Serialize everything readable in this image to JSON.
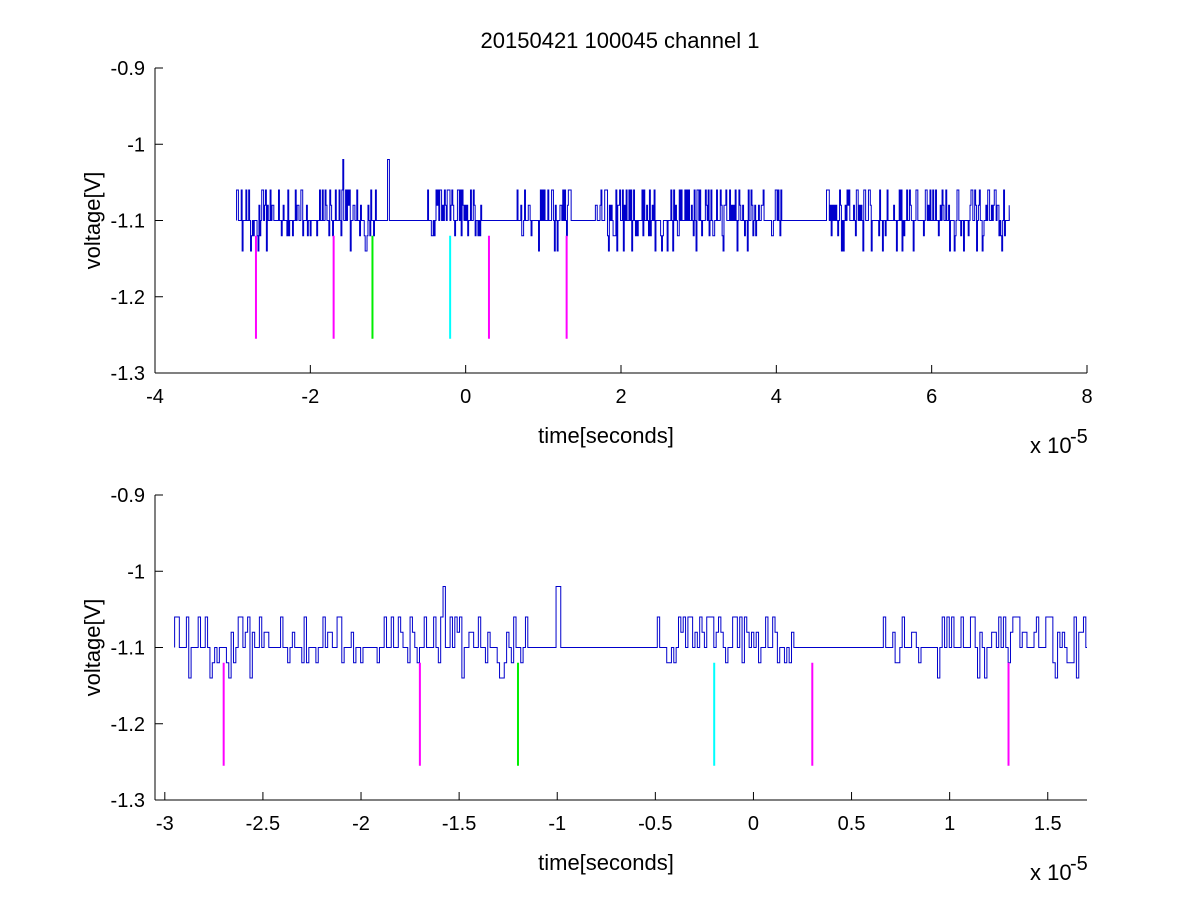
{
  "figure": {
    "title": "20150421 100045 channel 1"
  },
  "chart_data": [
    {
      "type": "line",
      "title": "20150421 100045 channel 1",
      "xlabel": "time[seconds]",
      "ylabel": "voltage[V]",
      "x_multiplier_label": "x 10",
      "x_multiplier_exponent": "-5",
      "xlim": [
        -4,
        8
      ],
      "ylim": [
        -1.3,
        -0.9
      ],
      "xticks": [
        -4,
        -2,
        0,
        2,
        4,
        6,
        8
      ],
      "xtick_labels": [
        "-4",
        "-2",
        "0",
        "2",
        "4",
        "6",
        "8"
      ],
      "yticks": [
        -0.9,
        -1.0,
        -1.1,
        -1.2,
        -1.3
      ],
      "ytick_labels": [
        "-0.9",
        "-1",
        "-1.1",
        "-1.2",
        "-1.3"
      ],
      "grid": false,
      "series": [
        {
          "color": "#0000cc",
          "x_range": [
            -2.95,
            7.0
          ],
          "baseline": -1.1,
          "levels": [
            -1.14,
            -1.12,
            -1.1,
            -1.08,
            -1.06
          ],
          "spikes": [
            {
              "x": -1.58,
              "y": -1.02
            },
            {
              "x": -1.0,
              "y": -1.02
            }
          ],
          "quiet_intervals": [
            [
              -1.15,
              -0.5
            ],
            [
              0.2,
              0.65
            ],
            [
              1.35,
              1.65
            ],
            [
              4.1,
              4.6
            ]
          ]
        }
      ],
      "markers": [
        {
          "x": -2.7,
          "y_top": -1.12,
          "y_bottom": -1.255,
          "color": "#ff00ff"
        },
        {
          "x": -1.7,
          "y_top": -1.12,
          "y_bottom": -1.255,
          "color": "#ff00ff"
        },
        {
          "x": -1.2,
          "y_top": -1.12,
          "y_bottom": -1.255,
          "color": "#00ee00"
        },
        {
          "x": -0.2,
          "y_top": -1.12,
          "y_bottom": -1.255,
          "color": "#00ffff"
        },
        {
          "x": 0.3,
          "y_top": -1.12,
          "y_bottom": -1.255,
          "color": "#ff00ff"
        },
        {
          "x": 1.3,
          "y_top": -1.12,
          "y_bottom": -1.255,
          "color": "#ff00ff"
        }
      ]
    },
    {
      "type": "line",
      "title": "",
      "xlabel": "time[seconds]",
      "ylabel": "voltage[V]",
      "x_multiplier_label": "x 10",
      "x_multiplier_exponent": "-5",
      "xlim": [
        -3.05,
        1.7
      ],
      "ylim": [
        -1.3,
        -0.9
      ],
      "xticks": [
        -3,
        -2.5,
        -2,
        -1.5,
        -1,
        -0.5,
        0,
        0.5,
        1,
        1.5
      ],
      "xtick_labels": [
        "-3",
        "-2.5",
        "-2",
        "-1.5",
        "-1",
        "-0.5",
        "0",
        "0.5",
        "1",
        "1.5"
      ],
      "yticks": [
        -0.9,
        -1.0,
        -1.1,
        -1.2,
        -1.3
      ],
      "ytick_labels": [
        "-0.9",
        "-1",
        "-1.1",
        "-1.2",
        "-1.3"
      ],
      "grid": false,
      "series": [
        {
          "color": "#0000cc",
          "x_range": [
            -2.95,
            1.7
          ],
          "baseline": -1.1,
          "levels": [
            -1.14,
            -1.12,
            -1.1,
            -1.08,
            -1.06
          ],
          "spikes": [
            {
              "x": -1.58,
              "y": -1.02
            },
            {
              "x": -1.0,
              "y": -1.02
            }
          ],
          "quiet_intervals": [
            [
              -1.15,
              -0.5
            ],
            [
              0.2,
              0.65
            ]
          ]
        }
      ],
      "markers": [
        {
          "x": -2.7,
          "y_top": -1.12,
          "y_bottom": -1.255,
          "color": "#ff00ff"
        },
        {
          "x": -1.7,
          "y_top": -1.12,
          "y_bottom": -1.255,
          "color": "#ff00ff"
        },
        {
          "x": -1.2,
          "y_top": -1.12,
          "y_bottom": -1.255,
          "color": "#00ee00"
        },
        {
          "x": -0.2,
          "y_top": -1.12,
          "y_bottom": -1.255,
          "color": "#00ffff"
        },
        {
          "x": 0.3,
          "y_top": -1.12,
          "y_bottom": -1.255,
          "color": "#ff00ff"
        },
        {
          "x": 1.3,
          "y_top": -1.12,
          "y_bottom": -1.255,
          "color": "#ff00ff"
        }
      ]
    }
  ]
}
